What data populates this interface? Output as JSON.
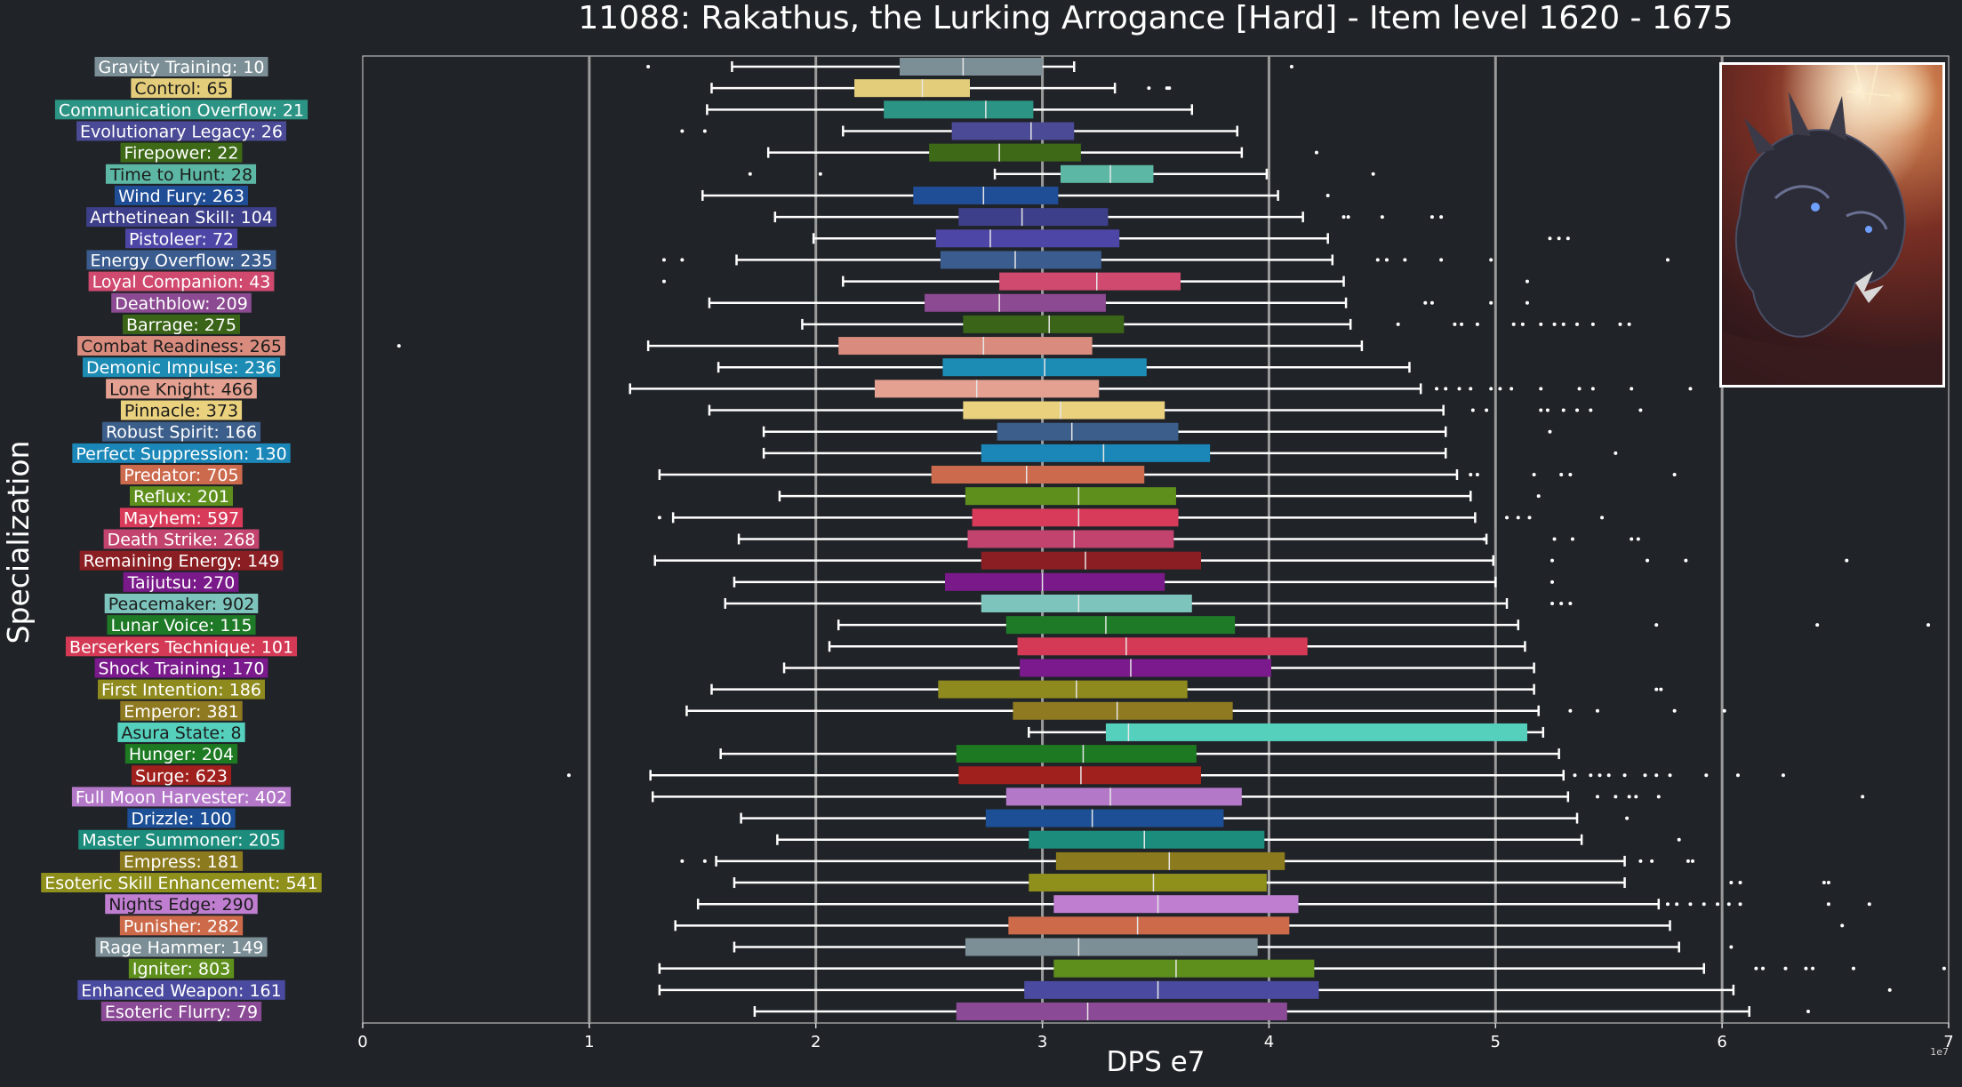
{
  "chart_data": {
    "type": "boxplot",
    "orientation": "horizontal",
    "title": "11088: Rakathus, the Lurking Arrogance [Hard] - Item level 1620 - 1675",
    "xlabel": "DPS e7",
    "ylabel": "Specialization",
    "x_offset_label": "1e7",
    "xlim": [
      0,
      7
    ],
    "xticks": [
      0,
      1,
      2,
      3,
      4,
      5,
      6,
      7
    ],
    "grid": "vertical",
    "series": [
      {
        "label": "Gravity Training: 10",
        "color": "#7c8f96",
        "whisker_low": 1.63,
        "q1": 2.37,
        "median": 2.65,
        "q3": 3.0,
        "whisker_high": 3.14,
        "outliers": [
          1.26,
          4.1
        ]
      },
      {
        "label": "Control: 65",
        "color": "#e3cd7a",
        "whisker_low": 1.54,
        "q1": 2.17,
        "median": 2.47,
        "q3": 2.68,
        "whisker_high": 3.32,
        "outliers": [
          3.47,
          3.55,
          3.56
        ]
      },
      {
        "label": "Communication Overflow: 21",
        "color": "#2c9484",
        "whisker_low": 1.52,
        "q1": 2.3,
        "median": 2.75,
        "q3": 2.96,
        "whisker_high": 3.66,
        "outliers": []
      },
      {
        "label": "Evolutionary Legacy: 26",
        "color": "#4a4a96",
        "whisker_low": 2.12,
        "q1": 2.6,
        "median": 2.95,
        "q3": 3.14,
        "whisker_high": 3.86,
        "outliers": [
          1.41,
          1.51
        ]
      },
      {
        "label": "Firepower: 22",
        "color": "#3e6a18",
        "whisker_low": 1.79,
        "q1": 2.5,
        "median": 2.81,
        "q3": 3.17,
        "whisker_high": 3.88,
        "outliers": [
          4.21
        ]
      },
      {
        "label": "Time to Hunt: 28",
        "color": "#5cb8a4",
        "whisker_low": 2.79,
        "q1": 3.08,
        "median": 3.3,
        "q3": 3.49,
        "whisker_high": 3.99,
        "outliers": [
          1.71,
          2.02,
          4.46
        ]
      },
      {
        "label": "Wind Fury: 263",
        "color": "#1f4d96",
        "whisker_low": 1.5,
        "q1": 2.43,
        "median": 2.74,
        "q3": 3.07,
        "whisker_high": 4.04,
        "outliers": [
          4.26
        ]
      },
      {
        "label": "Arthetinean Skill: 104",
        "color": "#3e3f8a",
        "whisker_low": 1.82,
        "q1": 2.63,
        "median": 2.91,
        "q3": 3.29,
        "whisker_high": 4.15,
        "outliers": [
          4.33,
          4.35,
          4.5,
          4.72,
          4.76
        ]
      },
      {
        "label": "Pistoleer: 72",
        "color": "#4e46a6",
        "whisker_low": 1.99,
        "q1": 2.53,
        "median": 2.77,
        "q3": 3.34,
        "whisker_high": 4.26,
        "outliers": [
          5.24,
          5.28,
          5.32
        ]
      },
      {
        "label": "Energy Overflow: 235",
        "color": "#3b5c8f",
        "whisker_low": 1.65,
        "q1": 2.55,
        "median": 2.88,
        "q3": 3.26,
        "whisker_high": 4.28,
        "outliers": [
          1.33,
          1.41,
          4.48,
          4.52,
          4.6,
          4.76,
          4.98,
          5.76
        ]
      },
      {
        "label": "Loyal Companion: 43",
        "color": "#d04a70",
        "whisker_low": 2.12,
        "q1": 2.81,
        "median": 3.24,
        "q3": 3.61,
        "whisker_high": 4.33,
        "outliers": [
          1.33,
          5.14
        ]
      },
      {
        "label": "Deathblow: 209",
        "color": "#8b4a92",
        "whisker_low": 1.53,
        "q1": 2.48,
        "median": 2.81,
        "q3": 3.28,
        "whisker_high": 4.34,
        "outliers": [
          4.69,
          4.72,
          4.98,
          5.14
        ]
      },
      {
        "label": "Barrage: 275",
        "color": "#3a6417",
        "whisker_low": 1.94,
        "q1": 2.65,
        "median": 3.03,
        "q3": 3.36,
        "whisker_high": 4.36,
        "outliers": [
          4.57,
          4.82,
          4.85,
          4.92,
          5.08,
          5.12,
          5.2,
          5.26,
          5.3,
          5.36,
          5.43,
          5.55,
          5.59
        ]
      },
      {
        "label": "Combat Readiness: 265",
        "color": "#d98c7e",
        "whisker_low": 1.26,
        "q1": 2.1,
        "median": 2.74,
        "q3": 3.22,
        "whisker_high": 4.41,
        "outliers": [
          0.16
        ]
      },
      {
        "label": "Demonic Impulse: 236",
        "color": "#1d8cb4",
        "whisker_low": 1.57,
        "q1": 2.56,
        "median": 3.01,
        "q3": 3.46,
        "whisker_high": 4.62,
        "outliers": []
      },
      {
        "label": "Lone Knight: 466",
        "color": "#e4a090",
        "whisker_low": 1.18,
        "q1": 2.26,
        "median": 2.71,
        "q3": 3.25,
        "whisker_high": 4.67,
        "outliers": [
          4.74,
          4.78,
          4.84,
          4.89,
          4.98,
          5.02,
          5.07,
          5.2,
          5.37,
          5.43,
          5.6,
          5.86
        ]
      },
      {
        "label": "Pinnacle: 373",
        "color": "#ead17e",
        "whisker_low": 1.53,
        "q1": 2.65,
        "median": 3.08,
        "q3": 3.54,
        "whisker_high": 4.77,
        "outliers": [
          4.9,
          4.96,
          5.2,
          5.23,
          5.3,
          5.36,
          5.42,
          5.64
        ]
      },
      {
        "label": "Robust Spirit: 166",
        "color": "#3c5e8a",
        "whisker_low": 1.77,
        "q1": 2.8,
        "median": 3.13,
        "q3": 3.6,
        "whisker_high": 4.78,
        "outliers": [
          5.24
        ]
      },
      {
        "label": "Perfect Suppression: 130",
        "color": "#1a87b8",
        "whisker_low": 1.77,
        "q1": 2.73,
        "median": 3.27,
        "q3": 3.74,
        "whisker_high": 4.78,
        "outliers": [
          5.53
        ]
      },
      {
        "label": "Predator: 705",
        "color": "#cc6a4e",
        "whisker_low": 1.31,
        "q1": 2.51,
        "median": 2.93,
        "q3": 3.45,
        "whisker_high": 4.83,
        "outliers": [
          4.89,
          4.92,
          5.17,
          5.29,
          5.33,
          5.79
        ]
      },
      {
        "label": "Reflux: 201",
        "color": "#5e8f1c",
        "whisker_low": 1.84,
        "q1": 2.66,
        "median": 3.16,
        "q3": 3.59,
        "whisker_high": 4.89,
        "outliers": [
          5.19
        ]
      },
      {
        "label": "Mayhem: 597",
        "color": "#d83a5a",
        "whisker_low": 1.37,
        "q1": 2.69,
        "median": 3.16,
        "q3": 3.6,
        "whisker_high": 4.91,
        "outliers": [
          1.31,
          5.05,
          5.1,
          5.15,
          5.47
        ]
      },
      {
        "label": "Death Strike: 268",
        "color": "#c2436e",
        "whisker_low": 1.66,
        "q1": 2.67,
        "median": 3.14,
        "q3": 3.58,
        "whisker_high": 4.96,
        "outliers": [
          4.95,
          5.26,
          5.34,
          5.6,
          5.63
        ]
      },
      {
        "label": "Remaining Energy: 149",
        "color": "#8b1e22",
        "whisker_low": 1.29,
        "q1": 2.73,
        "median": 3.19,
        "q3": 3.7,
        "whisker_high": 4.99,
        "outliers": [
          5.25,
          5.67,
          5.84,
          6.55
        ]
      },
      {
        "label": "Taijutsu: 270",
        "color": "#7a1a8a",
        "whisker_low": 1.64,
        "q1": 2.57,
        "median": 3.0,
        "q3": 3.54,
        "whisker_high": 5.0,
        "outliers": [
          5.25
        ]
      },
      {
        "label": "Peacemaker: 902",
        "color": "#7cc4bc",
        "whisker_low": 1.6,
        "q1": 2.73,
        "median": 3.16,
        "q3": 3.66,
        "whisker_high": 5.05,
        "outliers": [
          5.25,
          5.29,
          5.33
        ]
      },
      {
        "label": "Lunar Voice: 115",
        "color": "#1f7a28",
        "whisker_low": 2.1,
        "q1": 2.84,
        "median": 3.28,
        "q3": 3.85,
        "whisker_high": 5.1,
        "outliers": [
          5.71,
          6.42,
          6.91
        ]
      },
      {
        "label": "Berserkers Technique: 101",
        "color": "#d43a55",
        "whisker_low": 2.06,
        "q1": 2.89,
        "median": 3.37,
        "q3": 4.17,
        "whisker_high": 5.13,
        "outliers": []
      },
      {
        "label": "Shock Training: 170",
        "color": "#7a1a8c",
        "whisker_low": 1.86,
        "q1": 2.9,
        "median": 3.39,
        "q3": 4.01,
        "whisker_high": 5.17,
        "outliers": []
      },
      {
        "label": "First Intention: 186",
        "color": "#8f8a1e",
        "whisker_low": 1.54,
        "q1": 2.54,
        "median": 3.15,
        "q3": 3.64,
        "whisker_high": 5.17,
        "outliers": [
          5.71,
          5.73
        ]
      },
      {
        "label": "Emperor: 381",
        "color": "#8f7a22",
        "whisker_low": 1.43,
        "q1": 2.87,
        "median": 3.33,
        "q3": 3.84,
        "whisker_high": 5.19,
        "outliers": [
          5.33,
          5.45,
          5.79,
          6.01
        ]
      },
      {
        "label": "Asura State: 8",
        "color": "#54d0bc",
        "whisker_low": 2.94,
        "q1": 3.28,
        "median": 3.38,
        "q3": 5.14,
        "whisker_high": 5.21,
        "outliers": []
      },
      {
        "label": "Hunger: 204",
        "color": "#1d7a22",
        "whisker_low": 1.58,
        "q1": 2.62,
        "median": 3.18,
        "q3": 3.68,
        "whisker_high": 5.28,
        "outliers": []
      },
      {
        "label": "Surge: 623",
        "color": "#a0201e",
        "whisker_low": 1.27,
        "q1": 2.63,
        "median": 3.17,
        "q3": 3.7,
        "whisker_high": 5.3,
        "outliers": [
          0.91,
          5.35,
          5.42,
          5.46,
          5.5,
          5.57,
          5.66,
          5.71,
          5.77,
          5.93,
          6.07,
          6.27
        ]
      },
      {
        "label": "Full Moon Harvester: 402",
        "color": "#b478c8",
        "whisker_low": 1.28,
        "q1": 2.84,
        "median": 3.3,
        "q3": 3.88,
        "whisker_high": 5.32,
        "outliers": [
          5.45,
          5.53,
          5.59,
          5.62,
          5.72,
          6.62
        ]
      },
      {
        "label": "Drizzle: 100",
        "color": "#1c4f96",
        "whisker_low": 1.67,
        "q1": 2.75,
        "median": 3.22,
        "q3": 3.8,
        "whisker_high": 5.36,
        "outliers": [
          5.58
        ]
      },
      {
        "label": "Master Summoner: 205",
        "color": "#1c8c7c",
        "whisker_low": 1.83,
        "q1": 2.94,
        "median": 3.45,
        "q3": 3.98,
        "whisker_high": 5.38,
        "outliers": [
          5.81
        ]
      },
      {
        "label": "Empress: 181",
        "color": "#8b7a1e",
        "whisker_low": 1.56,
        "q1": 3.06,
        "median": 3.56,
        "q3": 4.07,
        "whisker_high": 5.57,
        "outliers": [
          1.41,
          1.51,
          5.64,
          5.69,
          5.85,
          5.87
        ]
      },
      {
        "label": "Esoteric Skill Enhancement: 541",
        "color": "#8f8f1c",
        "whisker_low": 1.64,
        "q1": 2.94,
        "median": 3.49,
        "q3": 3.99,
        "whisker_high": 5.57,
        "outliers": [
          6.04,
          6.08,
          6.45,
          6.47
        ]
      },
      {
        "label": "Nights Edge: 290",
        "color": "#bf7ed0",
        "whisker_low": 1.48,
        "q1": 3.05,
        "median": 3.51,
        "q3": 4.13,
        "whisker_high": 5.72,
        "outliers": [
          5.76,
          5.8,
          5.86,
          5.92,
          5.98,
          6.03,
          6.08,
          6.47,
          6.65
        ]
      },
      {
        "label": "Punisher: 282",
        "color": "#cc6a4a",
        "whisker_low": 1.38,
        "q1": 2.85,
        "median": 3.42,
        "q3": 4.09,
        "whisker_high": 5.77,
        "outliers": [
          6.53
        ]
      },
      {
        "label": "Rage Hammer: 149",
        "color": "#7c8f96",
        "whisker_low": 1.64,
        "q1": 2.66,
        "median": 3.16,
        "q3": 3.95,
        "whisker_high": 5.81,
        "outliers": [
          6.04
        ]
      },
      {
        "label": "Igniter: 803",
        "color": "#5e8f1c",
        "whisker_low": 1.31,
        "q1": 3.05,
        "median": 3.59,
        "q3": 4.2,
        "whisker_high": 5.92,
        "outliers": [
          6.15,
          6.18,
          6.28,
          6.37,
          6.4,
          6.58,
          6.98
        ]
      },
      {
        "label": "Enhanced Weapon: 161",
        "color": "#4a4aa0",
        "whisker_low": 1.31,
        "q1": 2.92,
        "median": 3.51,
        "q3": 4.22,
        "whisker_high": 6.05,
        "outliers": [
          6.74
        ]
      },
      {
        "label": "Esoteric Flurry: 79",
        "color": "#8b4a96",
        "whisker_low": 1.73,
        "q1": 2.62,
        "median": 3.2,
        "q3": 4.08,
        "whisker_high": 6.12,
        "outliers": [
          6.38
        ]
      }
    ]
  }
}
